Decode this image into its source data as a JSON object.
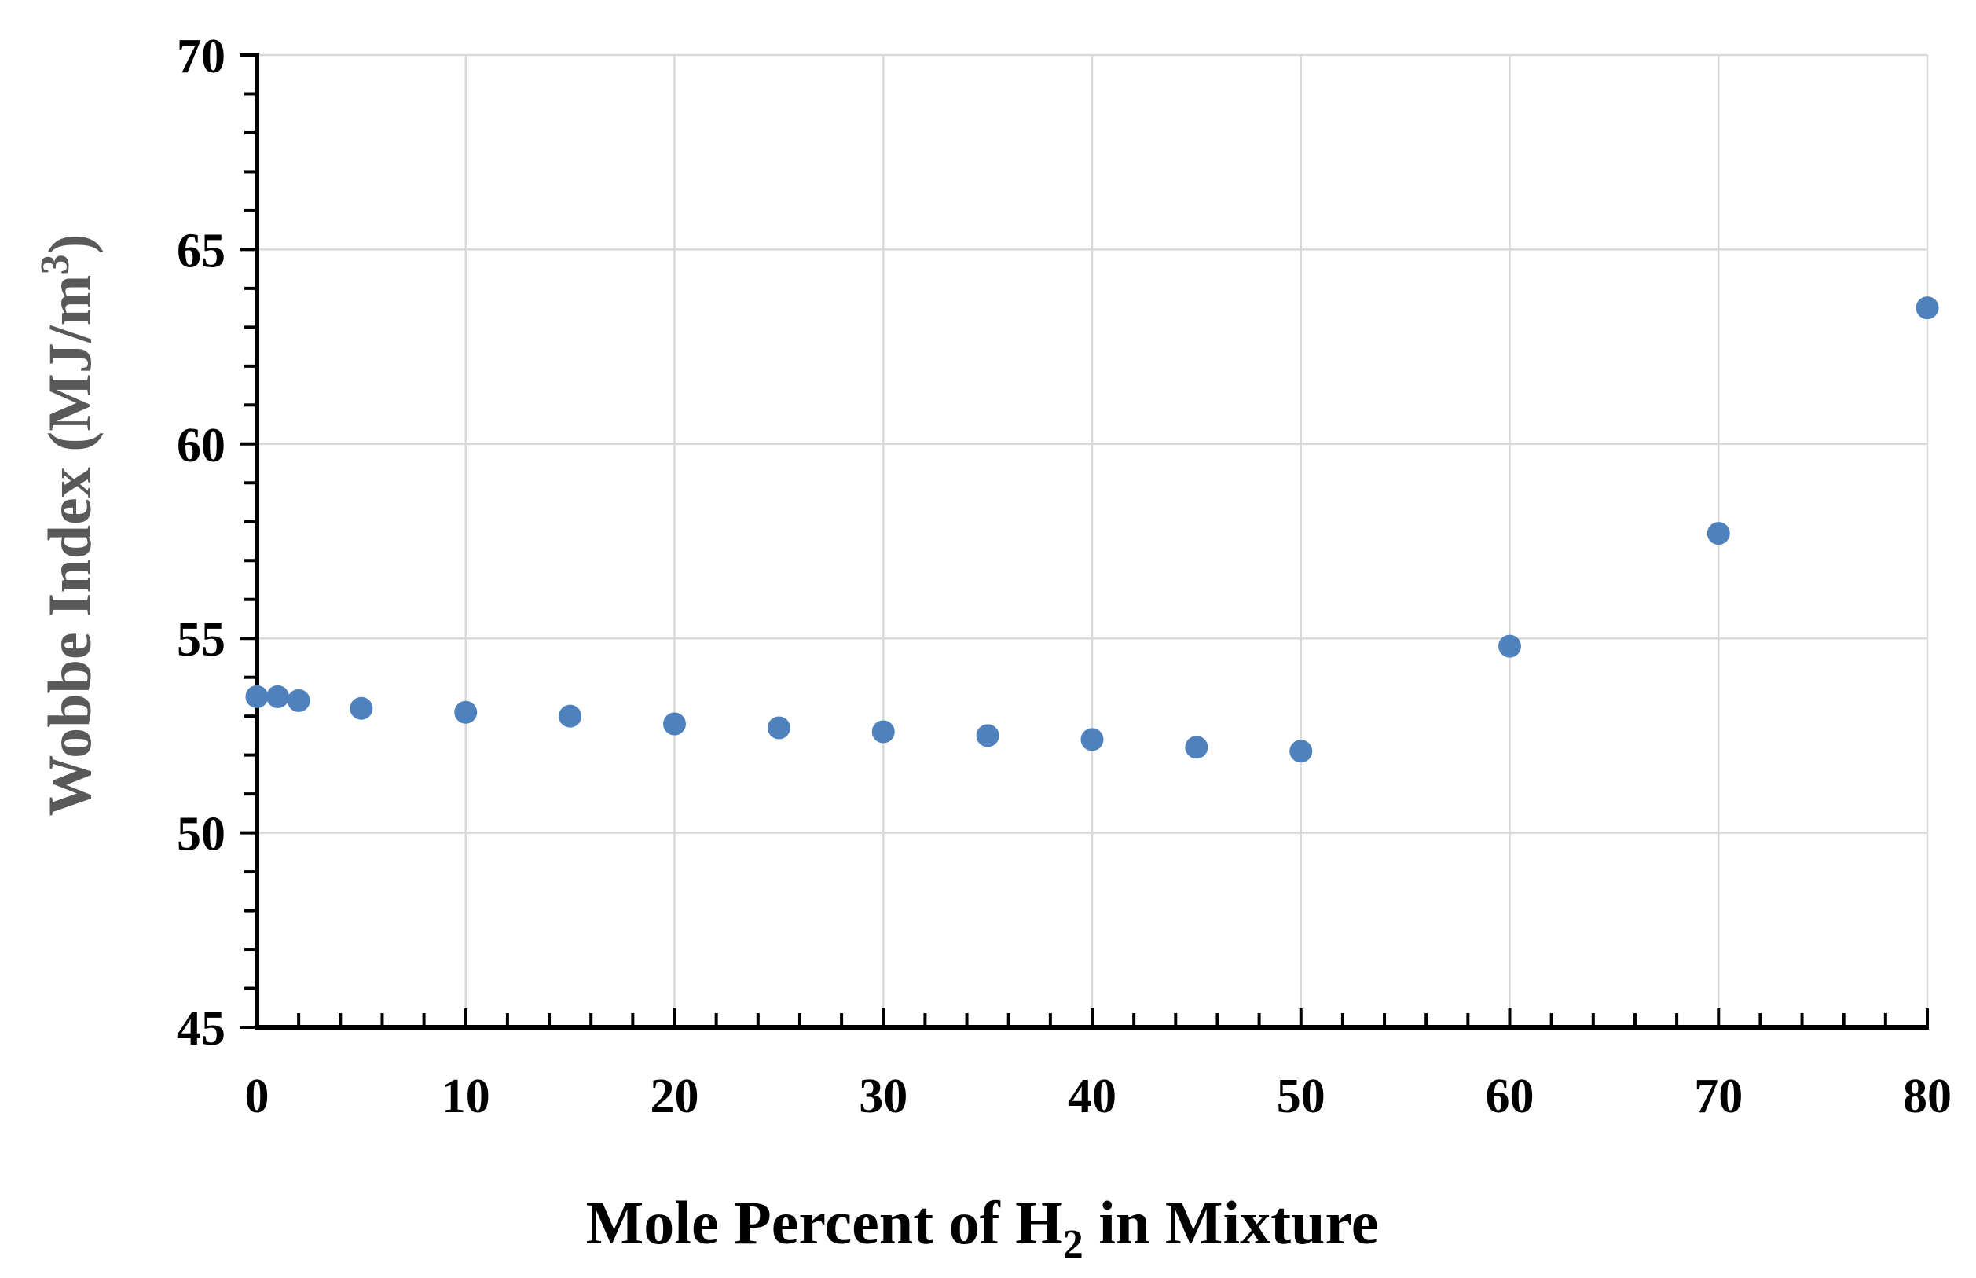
{
  "chart_data": {
    "type": "scatter",
    "title": "",
    "xlabel": {
      "main": "Mole Percent of H",
      "subscript": "2",
      "tail": " in Mixture"
    },
    "ylabel": {
      "main": "Wobbe Index (MJ/m",
      "superscript": "3",
      "tail": ")"
    },
    "xlim": [
      0,
      80
    ],
    "ylim": [
      45,
      70
    ],
    "x_ticks": [
      0,
      10,
      20,
      30,
      40,
      50,
      60,
      70,
      80
    ],
    "y_ticks": [
      45,
      50,
      55,
      60,
      65,
      70
    ],
    "x_minor_step": 2,
    "y_minor_step": 1,
    "grid": true,
    "legend": "none",
    "colors": {
      "marker": "#4f81bd",
      "grid": "#d9d9d9",
      "axis": "#000000",
      "ylabel": "#595959"
    },
    "series": [
      {
        "x": [
          0,
          1,
          2,
          5,
          10,
          15,
          20,
          25,
          30,
          35,
          40,
          45,
          50,
          60,
          70,
          80
        ],
        "y": [
          53.5,
          53.5,
          53.4,
          53.2,
          53.1,
          53.0,
          52.8,
          52.7,
          52.6,
          52.5,
          52.4,
          52.2,
          52.1,
          54.8,
          57.7,
          63.5
        ]
      }
    ]
  }
}
